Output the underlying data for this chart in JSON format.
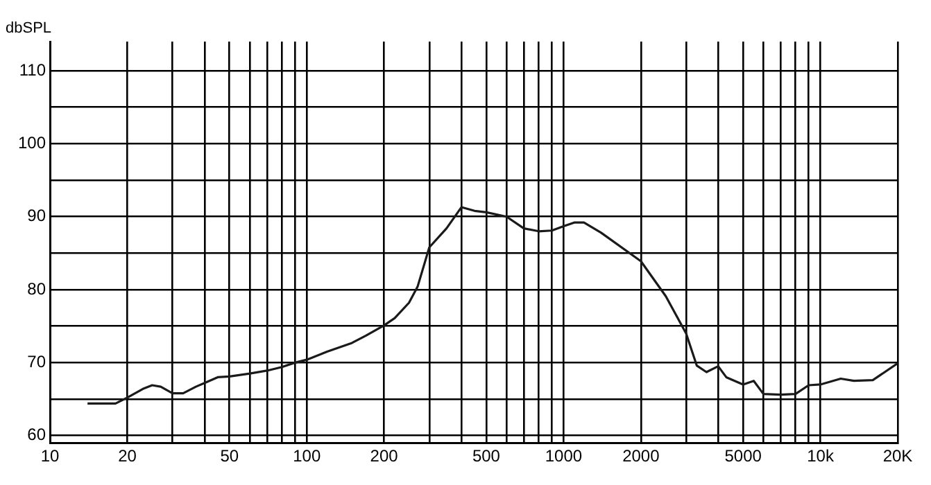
{
  "chart_data": {
    "type": "line",
    "ylabel": "dbSPL",
    "log": "x",
    "grid": true,
    "legend": false,
    "marker": "none",
    "line_style": "solid",
    "x": [
      14,
      18,
      20,
      23,
      25,
      27,
      30,
      33,
      37,
      40,
      45,
      50,
      60,
      70,
      80,
      90,
      100,
      120,
      150,
      170,
      200,
      220,
      250,
      270,
      300,
      350,
      400,
      450,
      500,
      600,
      700,
      800,
      900,
      1000,
      1100,
      1200,
      1400,
      2000,
      2500,
      3000,
      3300,
      3600,
      4000,
      4300,
      5000,
      5500,
      6000,
      7000,
      8000,
      9000,
      10000,
      12000,
      13500,
      16000,
      20000
    ],
    "series": [
      {
        "color": "#1a1a1a",
        "values": [
          64.4,
          64.4,
          65.2,
          66.4,
          66.9,
          66.7,
          65.8,
          65.8,
          66.7,
          67.2,
          68,
          68.1,
          68.5,
          68.9,
          69.4,
          70,
          70.4,
          71.5,
          72.7,
          73.7,
          75.1,
          76.1,
          78.2,
          80.4,
          85.8,
          88.4,
          91.3,
          90.8,
          90.6,
          90,
          88.4,
          88,
          88.1,
          88.7,
          89.2,
          89.2,
          87.8,
          83.9,
          79.1,
          74,
          69.6,
          68.7,
          69.5,
          68,
          67,
          67.5,
          65.7,
          65.6,
          65.7,
          66.9,
          67,
          67.8,
          67.5,
          67.6,
          69.9
        ]
      }
    ],
    "xlim": [
      10,
      20000
    ],
    "ylim": [
      59,
      114
    ],
    "xticks": [
      10,
      20,
      {
        "value": 30,
        "label": null
      },
      {
        "value": 40,
        "label": null
      },
      50,
      {
        "value": 60,
        "label": null
      },
      {
        "value": 70,
        "label": null
      },
      {
        "value": 80,
        "label": null
      },
      {
        "value": 90,
        "label": null
      },
      100,
      200,
      {
        "value": 300,
        "label": null
      },
      {
        "value": 400,
        "label": null
      },
      500,
      {
        "value": 600,
        "label": null
      },
      {
        "value": 700,
        "label": null
      },
      {
        "value": 800,
        "label": null
      },
      {
        "value": 900,
        "label": null
      },
      1000,
      2000,
      {
        "value": 3000,
        "label": null
      },
      {
        "value": 4000,
        "label": null
      },
      5000,
      {
        "value": 6000,
        "label": null
      },
      {
        "value": 7000,
        "label": null
      },
      {
        "value": 8000,
        "label": null
      },
      {
        "value": 9000,
        "label": null
      },
      {
        "value": 10000,
        "label": "10k"
      },
      {
        "value": 20000,
        "label": "20K"
      }
    ],
    "yticks": [
      60,
      {
        "value": 65,
        "label": null
      },
      70,
      {
        "value": 75,
        "label": null
      },
      80,
      {
        "value": 85,
        "label": null
      },
      90,
      {
        "value": 95,
        "label": null
      },
      100,
      {
        "value": 105,
        "label": null
      },
      110
    ]
  }
}
